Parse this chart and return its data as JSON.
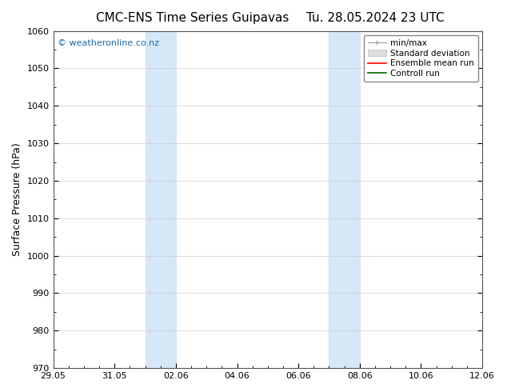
{
  "title_left": "CMC-ENS Time Series Guipavas",
  "title_right": "Tu. 28.05.2024 23 UTC",
  "ylabel": "Surface Pressure (hPa)",
  "ylim": [
    970,
    1060
  ],
  "ytick_interval": 10,
  "x_tick_labels": [
    "29.05",
    "31.05",
    "02.06",
    "04.06",
    "06.06",
    "08.06",
    "10.06",
    "12.06"
  ],
  "x_tick_positions_days": [
    0,
    2,
    4,
    6,
    8,
    10,
    12,
    14
  ],
  "x_minor_tick_interval": 0.5,
  "shaded_bands": [
    {
      "start_day": 3.0,
      "end_day": 4.0
    },
    {
      "start_day": 9.0,
      "end_day": 10.0
    }
  ],
  "shaded_color": "#d6e8f7",
  "watermark_text": "© weatheronline.co.nz",
  "watermark_color": "#1a6aab",
  "legend_items": [
    {
      "label": "min/max",
      "color": "#aaaaaa",
      "style": "minmax"
    },
    {
      "label": "Standard deviation",
      "color": "#cccccc",
      "style": "fill"
    },
    {
      "label": "Ensemble mean run",
      "color": "red",
      "style": "line"
    },
    {
      "label": "Controll run",
      "color": "green",
      "style": "line"
    }
  ],
  "background_color": "#ffffff",
  "plot_bg_color": "#ffffff",
  "grid_color": "#cccccc",
  "title_fontsize": 11,
  "axis_label_fontsize": 9,
  "tick_fontsize": 8,
  "watermark_fontsize": 8,
  "legend_fontsize": 7.5,
  "x_lim": [
    0,
    14
  ]
}
